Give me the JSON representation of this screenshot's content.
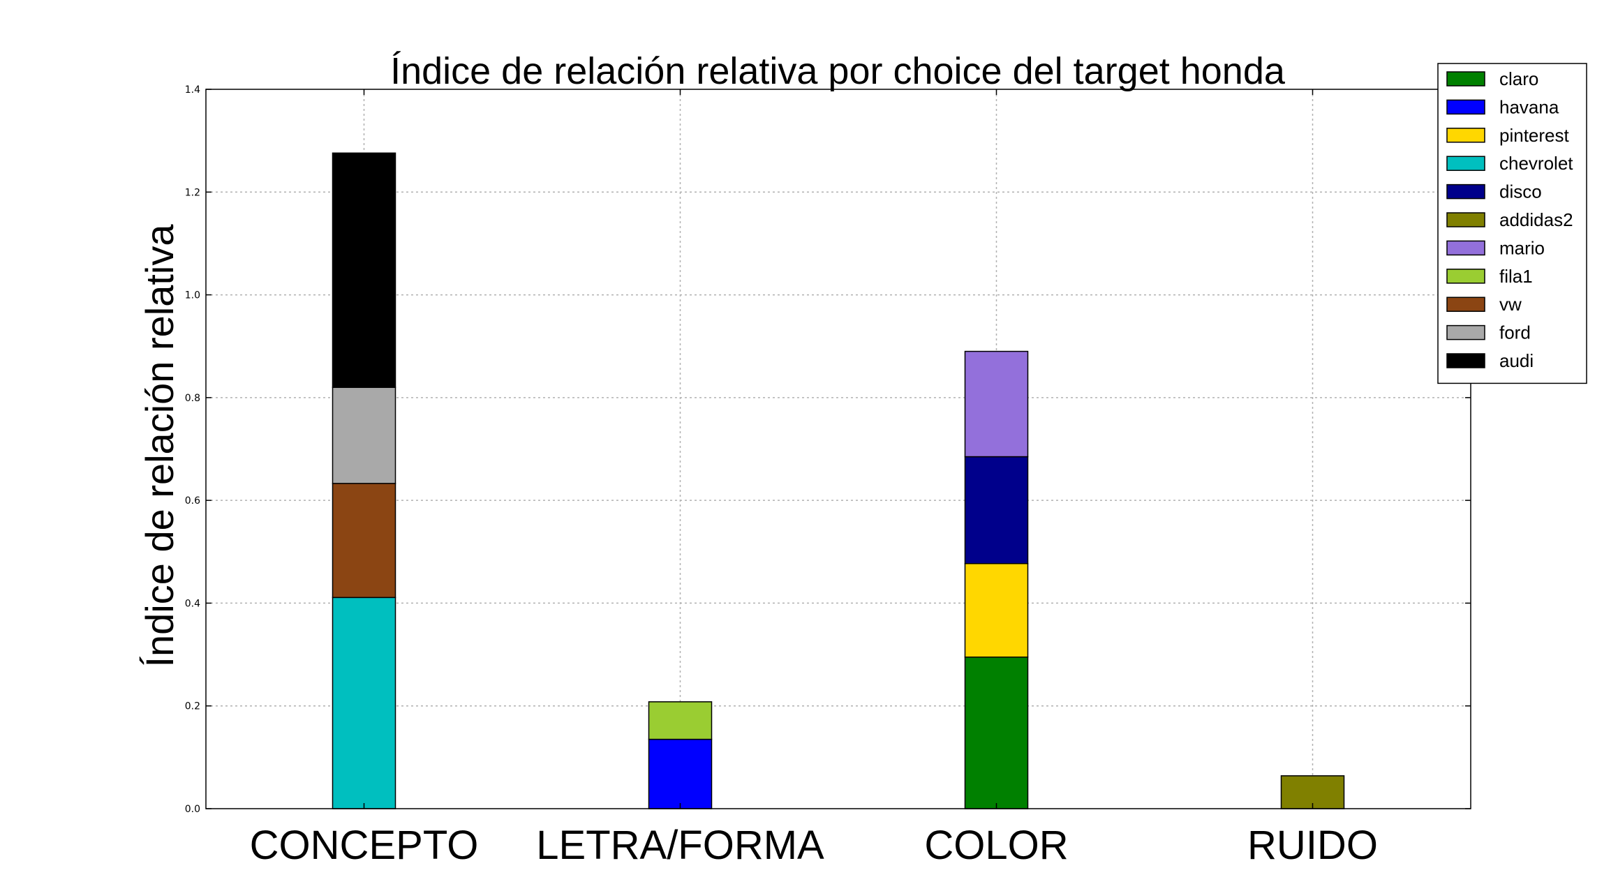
{
  "chart_data": {
    "type": "bar",
    "stacked": true,
    "title": "Índice de relación relativa por choice del target honda",
    "xlabel": "",
    "ylabel": "Índice de relación relativa",
    "categories": [
      "CONCEPTO",
      "LETRA/FORMA",
      "COLOR",
      "RUIDO"
    ],
    "ylim": [
      0,
      1.4
    ],
    "yticks": [
      "0.0",
      "0.2",
      "0.4",
      "0.6",
      "0.8",
      "1.0",
      "1.2",
      "1.4"
    ],
    "grid": true,
    "legend_position": "top-right",
    "series": [
      {
        "name": "claro",
        "color": "#008000",
        "values": [
          0,
          0,
          0.295,
          0
        ]
      },
      {
        "name": "havana",
        "color": "#0000ff",
        "values": [
          0,
          0.135,
          0,
          0
        ]
      },
      {
        "name": "pinterest",
        "color": "#ffd700",
        "values": [
          0,
          0,
          0.182,
          0
        ]
      },
      {
        "name": "chevrolet",
        "color": "#00bfbf",
        "values": [
          0.411,
          0,
          0,
          0
        ]
      },
      {
        "name": "disco",
        "color": "#00008b",
        "values": [
          0,
          0,
          0.208,
          0
        ]
      },
      {
        "name": "addidas2",
        "color": "#808000",
        "values": [
          0,
          0,
          0,
          0.064
        ]
      },
      {
        "name": "mario",
        "color": "#9370db",
        "values": [
          0,
          0,
          0.205,
          0
        ]
      },
      {
        "name": "fila1",
        "color": "#9acd32",
        "values": [
          0,
          0.073,
          0,
          0
        ]
      },
      {
        "name": "vw",
        "color": "#8b4513",
        "values": [
          0.222,
          0,
          0,
          0
        ]
      },
      {
        "name": "ford",
        "color": "#a9a9a9",
        "values": [
          0.187,
          0,
          0,
          0
        ]
      },
      {
        "name": "audi",
        "color": "#000000",
        "values": [
          0.456,
          0,
          0,
          0
        ]
      }
    ]
  }
}
